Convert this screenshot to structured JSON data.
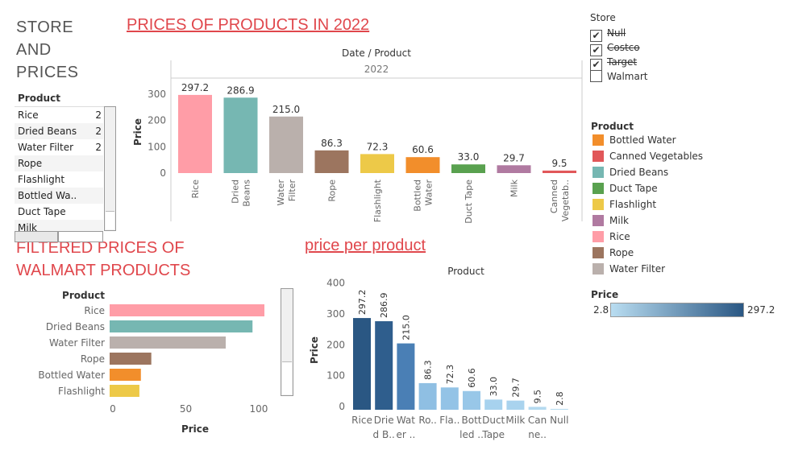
{
  "dashboard": {
    "title_lines": [
      "STORE",
      "AND",
      "PRICES"
    ]
  },
  "product_filter": {
    "header": "Product",
    "items": [
      {
        "label": "Rice",
        "count": "2"
      },
      {
        "label": "Dried Beans",
        "count": "2"
      },
      {
        "label": "Water Filter",
        "count": "2"
      },
      {
        "label": "Rope",
        "count": ""
      },
      {
        "label": "Flashlight",
        "count": ""
      },
      {
        "label": "Bottled Wa..",
        "count": ""
      },
      {
        "label": "Duct Tape",
        "count": ""
      },
      {
        "label": "Milk",
        "count": ""
      }
    ]
  },
  "store_filter": {
    "header": "Store",
    "items": [
      {
        "label": "Null",
        "checked": true
      },
      {
        "label": "Costco",
        "checked": true
      },
      {
        "label": "Target",
        "checked": true
      },
      {
        "label": "Walmart",
        "checked": false
      }
    ]
  },
  "product_legend": {
    "header": "Product",
    "items": [
      {
        "label": "Bottled Water",
        "color": "#f28e2b"
      },
      {
        "label": "Canned Vegetables",
        "color": "#e15759"
      },
      {
        "label": "Dried Beans",
        "color": "#76b7b2"
      },
      {
        "label": "Duct Tape",
        "color": "#59a14f"
      },
      {
        "label": "Flashlight",
        "color": "#edc948"
      },
      {
        "label": "Milk",
        "color": "#b07aa1"
      },
      {
        "label": "Rice",
        "color": "#ff9da7"
      },
      {
        "label": "Rope",
        "color": "#9c755f"
      },
      {
        "label": "Water Filter",
        "color": "#bab0ac"
      }
    ]
  },
  "price_legend": {
    "header": "Price",
    "min_label": "2.8",
    "max_label": "297.2",
    "color_low": "#b9ddf1",
    "color_high": "#2a5783"
  },
  "chart_data": [
    {
      "type": "bar",
      "title": "PRICES OF PRODUCTS IN 2022",
      "header": "Date / Product",
      "group_label": "2022",
      "ylabel": "Price",
      "ylim": [
        0,
        330
      ],
      "yticks": [
        "0",
        "100",
        "200",
        "300"
      ],
      "categories": [
        "Rice",
        "Dried Beans",
        "Water Filter",
        "Rope",
        "Flashlight",
        "Bottled Water",
        "Duct Tape",
        "Milk",
        "Canned Vegetab.."
      ],
      "category_labels": [
        [
          "Rice"
        ],
        [
          "Dried",
          "Beans"
        ],
        [
          "Water",
          "Filter"
        ],
        [
          "Rope"
        ],
        [
          "Flashlight"
        ],
        [
          "Bottled",
          "Water"
        ],
        [
          "Duct Tape"
        ],
        [
          "Milk"
        ],
        [
          "Canned",
          "Vegetab.."
        ]
      ],
      "values": [
        297.2,
        286.9,
        215.0,
        86.3,
        72.3,
        60.6,
        33.0,
        29.7,
        9.5
      ],
      "value_labels": [
        "297.2",
        "286.9",
        "215.0",
        "86.3",
        "72.3",
        "60.6",
        "33.0",
        "29.7",
        "9.5"
      ],
      "colors": [
        "#ff9da7",
        "#76b7b2",
        "#bab0ac",
        "#9c755f",
        "#edc948",
        "#f28e2b",
        "#59a14f",
        "#b07aa1",
        "#e15759"
      ]
    },
    {
      "type": "bar",
      "orientation": "horizontal",
      "title": "FILTERED PRICES OF WALMART PRODUCTS",
      "header": "Product",
      "xlabel": "Price",
      "xlim": [
        0,
        110
      ],
      "xticks": [
        "0",
        "50",
        "100"
      ],
      "categories": [
        "Rice",
        "Dried Beans",
        "Water Filter",
        "Rope",
        "Bottled Water",
        "Flashlight"
      ],
      "values": [
        104,
        96,
        78,
        28,
        21,
        20
      ],
      "colors": [
        "#ff9da7",
        "#76b7b2",
        "#bab0ac",
        "#9c755f",
        "#f28e2b",
        "#edc948"
      ]
    },
    {
      "type": "bar",
      "title": "price per product",
      "header": "Product",
      "ylabel": "Price",
      "ylim": [
        0,
        410
      ],
      "yticks": [
        "0",
        "100",
        "200",
        "300",
        "400"
      ],
      "categories": [
        "Rice",
        "Dried Beans",
        "Water Filter",
        "Rope",
        "Flashlight",
        "Bottled Water",
        "Duct Tape",
        "Milk",
        "Canned Vegetables",
        "Null"
      ],
      "category_labels": [
        [
          "Rice"
        ],
        [
          "Drie",
          "d B.."
        ],
        [
          "Wat",
          "er .."
        ],
        [
          "Ro.."
        ],
        [
          "Fla.."
        ],
        [
          "Bott",
          "led .."
        ],
        [
          "Duct",
          "Tape"
        ],
        [
          "Milk"
        ],
        [
          "Can",
          "ne.."
        ],
        [
          "Null"
        ]
      ],
      "values": [
        297.2,
        286.9,
        215.0,
        86.3,
        72.3,
        60.6,
        33.0,
        29.7,
        9.5,
        2.8
      ],
      "value_labels": [
        "297.2",
        "286.9",
        "215.0",
        "86.3",
        "72.3",
        "60.6",
        "33.0",
        "29.7",
        "9.5",
        "2.8"
      ],
      "colors": [
        "#2a5783",
        "#2f5e8d",
        "#4a7fb5",
        "#8fbfe3",
        "#93c3e6",
        "#98c7e8",
        "#a7d2ee",
        "#a9d3ee",
        "#b5daf0",
        "#b9ddf1"
      ]
    }
  ]
}
